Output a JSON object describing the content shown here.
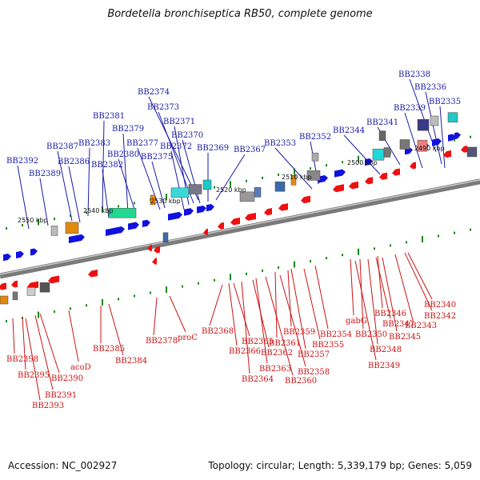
{
  "title": "Bordetella bronchiseptica RB50, complete genome",
  "footer": {
    "accession": "Accession: NC_002927",
    "summary": "Topology: circular; Length: 5,339,179 bp; Genes: 5,059"
  },
  "colors": {
    "forward_gene": "#1010e0",
    "reverse_gene": "#ee1010",
    "backbone": "#7a7a7a",
    "tick": "#1a8a1a",
    "top_label": "#1a1aa8",
    "bottom_label": "#cc1414"
  },
  "scale_labels": [
    "2490 kbp",
    "2500 kbp",
    "2510 kbp",
    "2520 kbp",
    "2530 kbp",
    "2540 kbp",
    "2550 kbp"
  ],
  "top_labels": [
    "BB2338",
    "BB2336",
    "BB2335",
    "BB2339",
    "BB2341",
    "BB2344",
    "BB2352",
    "BB2353",
    "BB2374",
    "BB2373",
    "BB2371",
    "BB2381",
    "BB2379",
    "BB2370",
    "BB2383",
    "BB2387",
    "BB2377",
    "BB2372",
    "BB2369",
    "BB2367",
    "BB2380",
    "BB2392",
    "BB2386",
    "BB2382",
    "BB2375",
    "BB2389"
  ],
  "bottom_labels": [
    "BB2340",
    "BB2342",
    "BB2343",
    "BB2346",
    "BB2345",
    "gabG",
    "BB2347",
    "BB2354",
    "BB2350",
    "BB2348",
    "BB2355",
    "BB2349",
    "BB2359",
    "BB2361",
    "BB2357",
    "BB2368",
    "BB2365",
    "BB2366",
    "BB2362",
    "BB2363",
    "BB2358",
    "BB2364",
    "BB2360",
    "proC",
    "BB2378",
    "BB2385",
    "BB2384",
    "acoD",
    "BB2398",
    "BB2395",
    "BB2390",
    "BB2391",
    "BB2393"
  ]
}
